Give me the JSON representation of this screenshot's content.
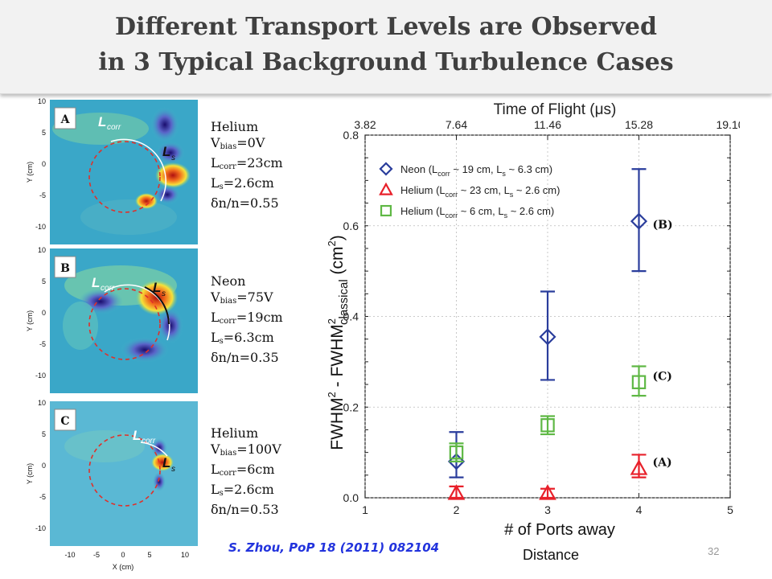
{
  "title": {
    "line1": "Different Transport Levels are Observed",
    "line2": "in 3 Typical Background Turbulence Cases"
  },
  "panels": [
    {
      "label": "A",
      "gas": "Helium",
      "vbias": "0V",
      "lcorr": "23cm",
      "ls": "2.6cm",
      "dn": "δn/n=0.55",
      "y_axis_label": "Y (cm)",
      "y_ticks": [
        "10",
        "5",
        "0",
        "-5",
        "-10"
      ],
      "lcorr_label": "L",
      "lcorr_sub": "corr",
      "ls_label": "L",
      "ls_sub": "s"
    },
    {
      "label": "B",
      "gas": "Neon",
      "vbias": "75V",
      "lcorr": "19cm",
      "ls": "6.3cm",
      "dn": "δn/n=0.35",
      "y_axis_label": "Y (cm)",
      "y_ticks": [
        "10",
        "5",
        "0",
        "-5",
        "-10"
      ],
      "lcorr_label": "L",
      "lcorr_sub": "corr",
      "ls_label": "L",
      "ls_sub": "s"
    },
    {
      "label": "C",
      "gas": "Helium",
      "vbias": "100V",
      "lcorr": "6cm",
      "ls": "2.6cm",
      "dn": "δn/n=0.53",
      "y_axis_label": "Y (cm)",
      "y_ticks": [
        "10",
        "5",
        "0",
        "-5",
        "-10"
      ],
      "lcorr_label": "L",
      "lcorr_sub": "corr",
      "ls_label": "L",
      "ls_sub": "s"
    }
  ],
  "info_labels": {
    "v": "V",
    "v_sub": "bias",
    "l": "L",
    "l_sub_corr": "corr",
    "l_sub_s": "s"
  },
  "panel_x_axis": {
    "label": "X (cm)",
    "ticks": [
      "-10",
      "-5",
      "0",
      "5",
      "10"
    ]
  },
  "citation": "S. Zhou, PoP 18 (2011) 082104",
  "page_number": "32",
  "distance_label": "Distance",
  "chart_data": {
    "type": "scatter",
    "top_axis_title": "Time of Flight (μs)",
    "top_ticks": [
      "3.82",
      "7.64",
      "11.46",
      "15.28",
      "19.10"
    ],
    "xlabel": "# of Ports away",
    "ylabel_parts": {
      "main1": "FWHM",
      "sup1": "2",
      "main2": " - FWHM",
      "sup2": "2",
      "sub2": "classical",
      "units_open": "  (cm",
      "units_sup": "2",
      "units_close": ")"
    },
    "xlim": [
      1,
      5
    ],
    "ylim": [
      0,
      0.8
    ],
    "x_ticks": [
      1,
      2,
      3,
      4,
      5
    ],
    "y_ticks": [
      "0.0",
      "0.2",
      "0.4",
      "0.6",
      "0.8"
    ],
    "series": [
      {
        "name": "Neon (L",
        "legend_parts": [
          "Neon (L",
          "corr",
          " ~ 19 cm, L",
          "s",
          " ~ 6.3 cm)"
        ],
        "marker": "diamond",
        "color": "#2a3d9c",
        "x": [
          2,
          3,
          4
        ],
        "y": [
          0.08,
          0.355,
          0.61
        ],
        "err_low": [
          0.045,
          0.26,
          0.5
        ],
        "err_high": [
          0.145,
          0.455,
          0.725
        ]
      },
      {
        "name": "Helium (L",
        "legend_parts": [
          "Helium (L",
          "corr",
          " ~ 23 cm, L",
          "s",
          " ~ 2.6 cm)"
        ],
        "marker": "triangle",
        "color": "#e8202a",
        "x": [
          2,
          3,
          4
        ],
        "y": [
          0.01,
          0.01,
          0.065
        ],
        "err_low": [
          0.0,
          0.0,
          0.045
        ],
        "err_high": [
          0.025,
          0.02,
          0.095
        ]
      },
      {
        "name": "Helium (L",
        "legend_parts": [
          "Helium (L",
          "corr",
          " ~ 6 cm, L",
          "s",
          " ~ 2.6 cm)"
        ],
        "marker": "square",
        "color": "#5fb845",
        "x": [
          2,
          3,
          4
        ],
        "y": [
          0.1,
          0.16,
          0.255
        ],
        "err_low": [
          0.08,
          0.14,
          0.225
        ],
        "err_high": [
          0.12,
          0.18,
          0.29
        ]
      }
    ],
    "annotations": [
      {
        "text": "(B)",
        "x": 4.15,
        "y": 0.6
      },
      {
        "text": "(C)",
        "x": 4.15,
        "y": 0.265
      },
      {
        "text": "(A)",
        "x": 4.15,
        "y": 0.075
      }
    ]
  }
}
